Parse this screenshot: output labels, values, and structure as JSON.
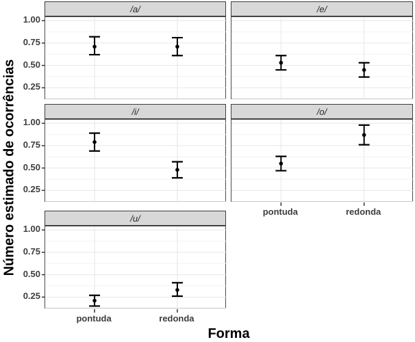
{
  "chart_data": {
    "type": "scatter",
    "subtype": "pointrange-faceted",
    "title": "",
    "xlabel": "Forma",
    "ylabel": "Número estimado de ocorrências",
    "x_categories": [
      "pontuda",
      "redonda"
    ],
    "ylim": [
      0.115,
      1.04
    ],
    "grid": true,
    "legend": "none",
    "y_major_ticks": [
      {
        "value": 0.25,
        "label": "0.25"
      },
      {
        "value": 0.5,
        "label": "0.50"
      },
      {
        "value": 0.75,
        "label": "0.75"
      },
      {
        "value": 1.0,
        "label": "1.00"
      }
    ],
    "y_minor_ticks": [
      0.125,
      0.375,
      0.625,
      0.875
    ],
    "facets": [
      {
        "label": "/a/",
        "points": [
          {
            "x": "pontuda",
            "y": 0.71,
            "ymin": 0.62,
            "ymax": 0.82
          },
          {
            "x": "redonda",
            "y": 0.71,
            "ymin": 0.61,
            "ymax": 0.81
          }
        ]
      },
      {
        "label": "/e/",
        "points": [
          {
            "x": "pontuda",
            "y": 0.53,
            "ymin": 0.45,
            "ymax": 0.61
          },
          {
            "x": "redonda",
            "y": 0.45,
            "ymin": 0.37,
            "ymax": 0.53
          }
        ]
      },
      {
        "label": "/i/",
        "points": [
          {
            "x": "pontuda",
            "y": 0.79,
            "ymin": 0.69,
            "ymax": 0.89
          },
          {
            "x": "redonda",
            "y": 0.48,
            "ymin": 0.39,
            "ymax": 0.57
          }
        ]
      },
      {
        "label": "/o/",
        "points": [
          {
            "x": "pontuda",
            "y": 0.55,
            "ymin": 0.47,
            "ymax": 0.63
          },
          {
            "x": "redonda",
            "y": 0.87,
            "ymin": 0.76,
            "ymax": 0.98
          }
        ]
      },
      {
        "label": "/u/",
        "points": [
          {
            "x": "pontuda",
            "y": 0.21,
            "ymin": 0.15,
            "ymax": 0.27
          },
          {
            "x": "redonda",
            "y": 0.33,
            "ymin": 0.26,
            "ymax": 0.41
          }
        ]
      }
    ]
  },
  "colors": {
    "background": "#ffffff",
    "strip_fill": "#d8d8d8",
    "strip_border": "#3c3c3c",
    "panel_border": "#4a4a4a",
    "grid_major": "#e6e6e6",
    "grid_minor": "#f2f2f2",
    "tick_mark": "#333333",
    "tick_label": "#3d3d3d",
    "axis_title": "#000000",
    "data": "#000000"
  }
}
